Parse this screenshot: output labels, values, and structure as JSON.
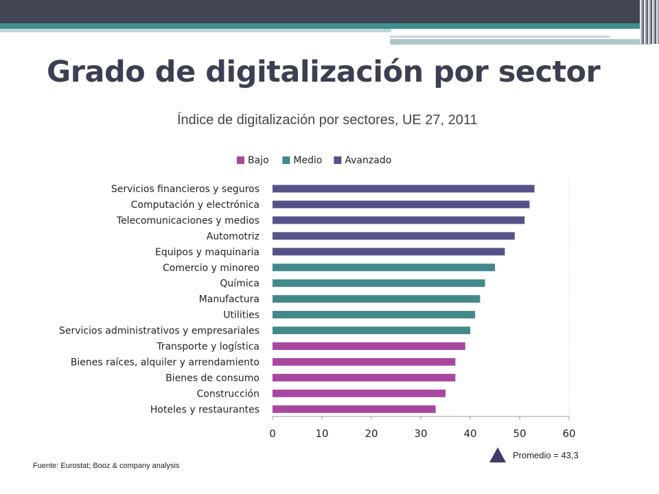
{
  "slide": {
    "title": "Grado de digitalización por sector",
    "source": "Fuente: Eurostat; Booz & company analysis",
    "average_label": "Promedio = 43,3"
  },
  "chart_data": {
    "type": "bar",
    "orientation": "horizontal",
    "title": "Índice de digitalización por sectores, UE 27, 2011",
    "xlabel": "",
    "ylabel": "",
    "xlim": [
      0,
      60
    ],
    "xticks": [
      0,
      10,
      20,
      30,
      40,
      50,
      60
    ],
    "grid": true,
    "legend_position": "top",
    "groups": [
      {
        "name": "Bajo",
        "color": "#a9479f"
      },
      {
        "name": "Medio",
        "color": "#43888a"
      },
      {
        "name": "Avanzado",
        "color": "#565289"
      }
    ],
    "categories": [
      "Servicios financieros y seguros",
      "Computación y electrónica",
      "Telecomunicaciones y medios",
      "Automotriz",
      "Equipos y maquinaria",
      "Comercio y minoreo",
      "Química",
      "Manufactura",
      "Utilities",
      "Servicios administrativos y empresariales",
      "Transporte y logística",
      "Bienes raíces, alquiler y arrendamiento",
      "Bienes de consumo",
      "Construcción",
      "Hoteles y restaurantes"
    ],
    "values": [
      53,
      52,
      51,
      49,
      47,
      45,
      43,
      42,
      41,
      40,
      39,
      37,
      37,
      35,
      33
    ],
    "value_groups": [
      "Avanzado",
      "Avanzado",
      "Avanzado",
      "Avanzado",
      "Avanzado",
      "Medio",
      "Medio",
      "Medio",
      "Medio",
      "Medio",
      "Bajo",
      "Bajo",
      "Bajo",
      "Bajo",
      "Bajo"
    ]
  }
}
